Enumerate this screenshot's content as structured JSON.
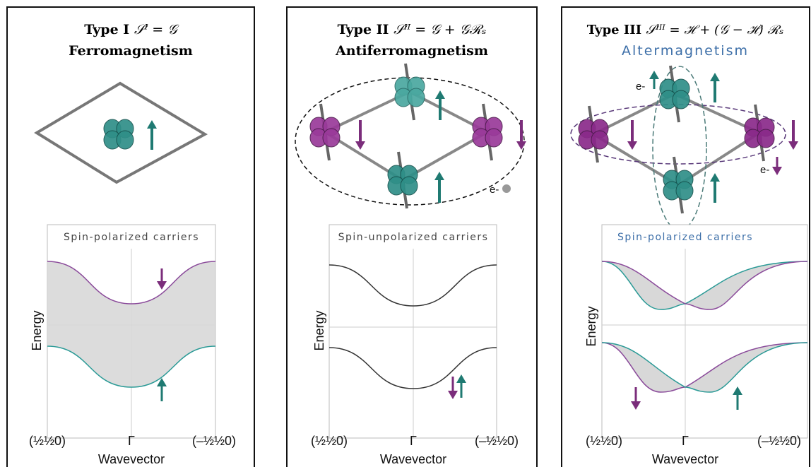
{
  "panels": [
    {
      "title": "Type I",
      "formula": "𝒮ᴵ = 𝒢",
      "subtitle": "Ferromagnetism",
      "carriers": "Spin-polarized carriers",
      "y_label": "Energy",
      "x_label": "Wavevector",
      "x_ticks": [
        "(½½0)",
        "Γ",
        "(–½½0)"
      ]
    },
    {
      "title": "Type II",
      "formula": "𝒮ᴵᴵ = 𝒢 + 𝒢ℛₛ",
      "subtitle": "Antiferromagnetism",
      "carriers": "Spin-unpolarized carriers",
      "y_label": "Energy",
      "x_label": "Wavevector",
      "x_ticks": [
        "(½½0)",
        "Γ",
        "(–½½0)"
      ],
      "electron_labels": [
        "e-"
      ]
    },
    {
      "title": "Type III",
      "formula": "𝒮ᴵᴵᴵ = ℋ + (𝒢 − ℋ) ℛₛ",
      "subtitle": "Altermagnetism",
      "carriers": "Spin-polarized carriers",
      "y_label": "Energy",
      "x_label": "Wavevector",
      "x_ticks": [
        "(½½0)",
        "Γ",
        "(–½½0)"
      ],
      "electron_labels": [
        "e-",
        "e-"
      ]
    }
  ]
}
